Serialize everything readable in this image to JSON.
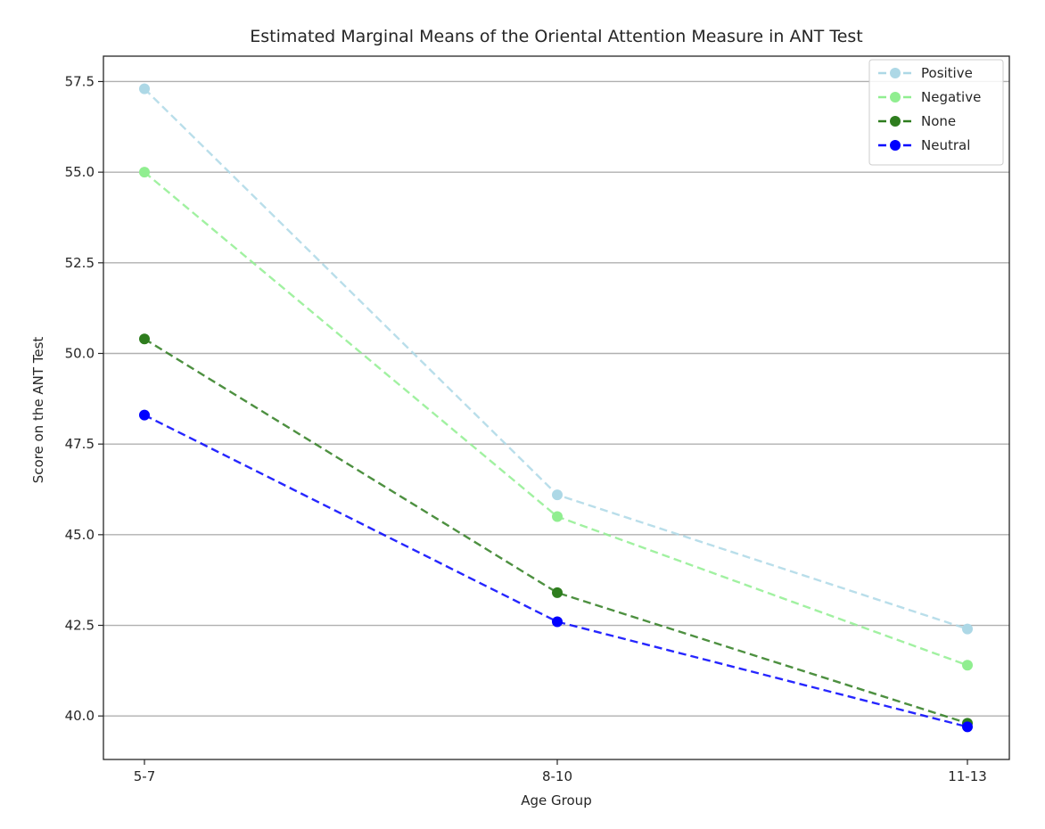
{
  "chart_data": {
    "type": "line",
    "title": "Estimated Marginal Means of the Oriental Attention Measure in ANT Test",
    "xlabel": "Age Group",
    "ylabel": "Score on the ANT Test",
    "categories": [
      "5-7",
      "8-10",
      "11-13"
    ],
    "ylim": [
      38.8,
      58.2
    ],
    "yticks": [
      "40.0",
      "42.5",
      "45.0",
      "47.5",
      "50.0",
      "52.5",
      "55.0",
      "57.5"
    ],
    "grid": "horizontal",
    "legend_position": "top-right",
    "line_style": "dashed",
    "series": [
      {
        "name": "Positive",
        "color": "#add8e6",
        "values": [
          57.3,
          46.1,
          42.4
        ]
      },
      {
        "name": "Negative",
        "color": "#90ee90",
        "values": [
          55.0,
          45.5,
          41.4
        ]
      },
      {
        "name": "None",
        "color": "#2e7d1e",
        "values": [
          50.4,
          43.4,
          39.8
        ]
      },
      {
        "name": "Neutral",
        "color": "#0000ff",
        "values": [
          48.3,
          42.6,
          39.7
        ]
      }
    ]
  }
}
